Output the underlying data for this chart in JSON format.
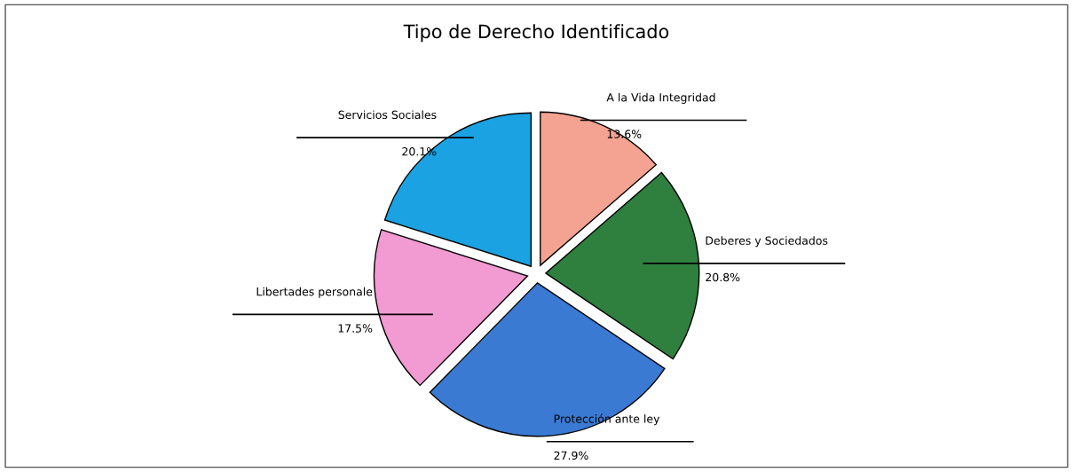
{
  "chart_data": {
    "type": "pie",
    "title": "Tipo de Derecho Identificado",
    "categories": [
      "A la Vida Integridad",
      "Deberes y Sociedados",
      "Protección ante ley",
      "Libertades personale",
      "Servicios Sociales"
    ],
    "values": [
      13.6,
      20.8,
      27.9,
      17.5,
      20.1
    ],
    "colors": [
      "#f4a392",
      "#2f7f3e",
      "#3a7ad2",
      "#f29ad2",
      "#1ba2e2"
    ],
    "value_labels": [
      "13.6%",
      "20.8%",
      "27.9%",
      "17.5%",
      "20.1%"
    ],
    "legend": false
  }
}
